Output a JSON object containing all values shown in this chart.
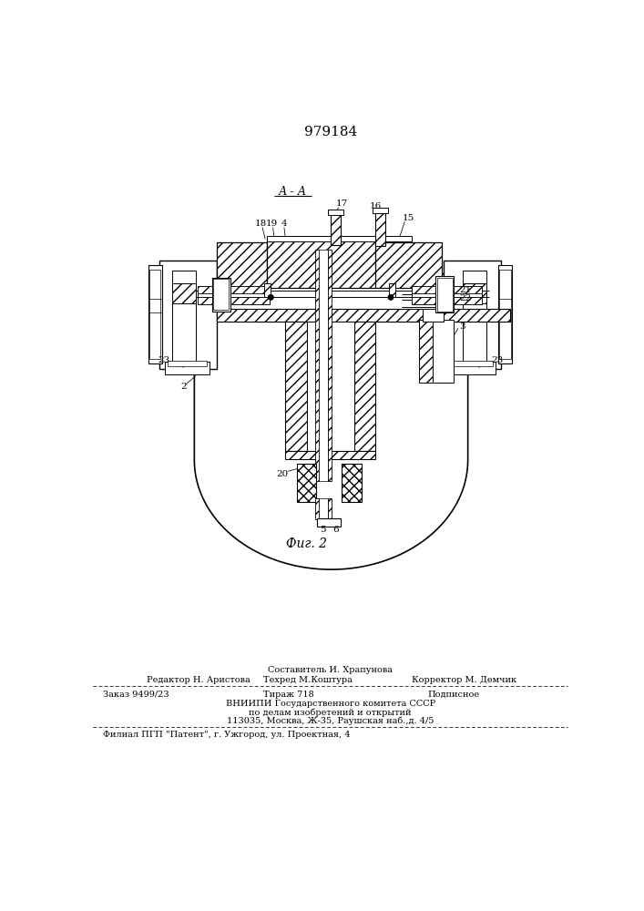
{
  "patent_number": "979184",
  "section_label": "А - А",
  "fig_label": "Фиг. 2",
  "bg_color": "#ffffff",
  "footer": {
    "line1": "Составитель И. Храпунова",
    "line2_left": "Редактор Н. Аристова",
    "line2_mid": "Техред М.Коштура",
    "line2_right": "Корректор М. Демчик",
    "line3a": "Заказ 9499/23",
    "line3b": "Тираж 718",
    "line3c": "Подписное",
    "line4": "ВНИИПИ Государственного комитета СССР",
    "line5": "по делам изобретений и открытий",
    "line6": "113035, Москва, Ж-35, Раушская наб.,д. 4/5",
    "line7": "Филиал ПГП \"Патент\", г. Ужгород, ул. Проектная, 4"
  }
}
